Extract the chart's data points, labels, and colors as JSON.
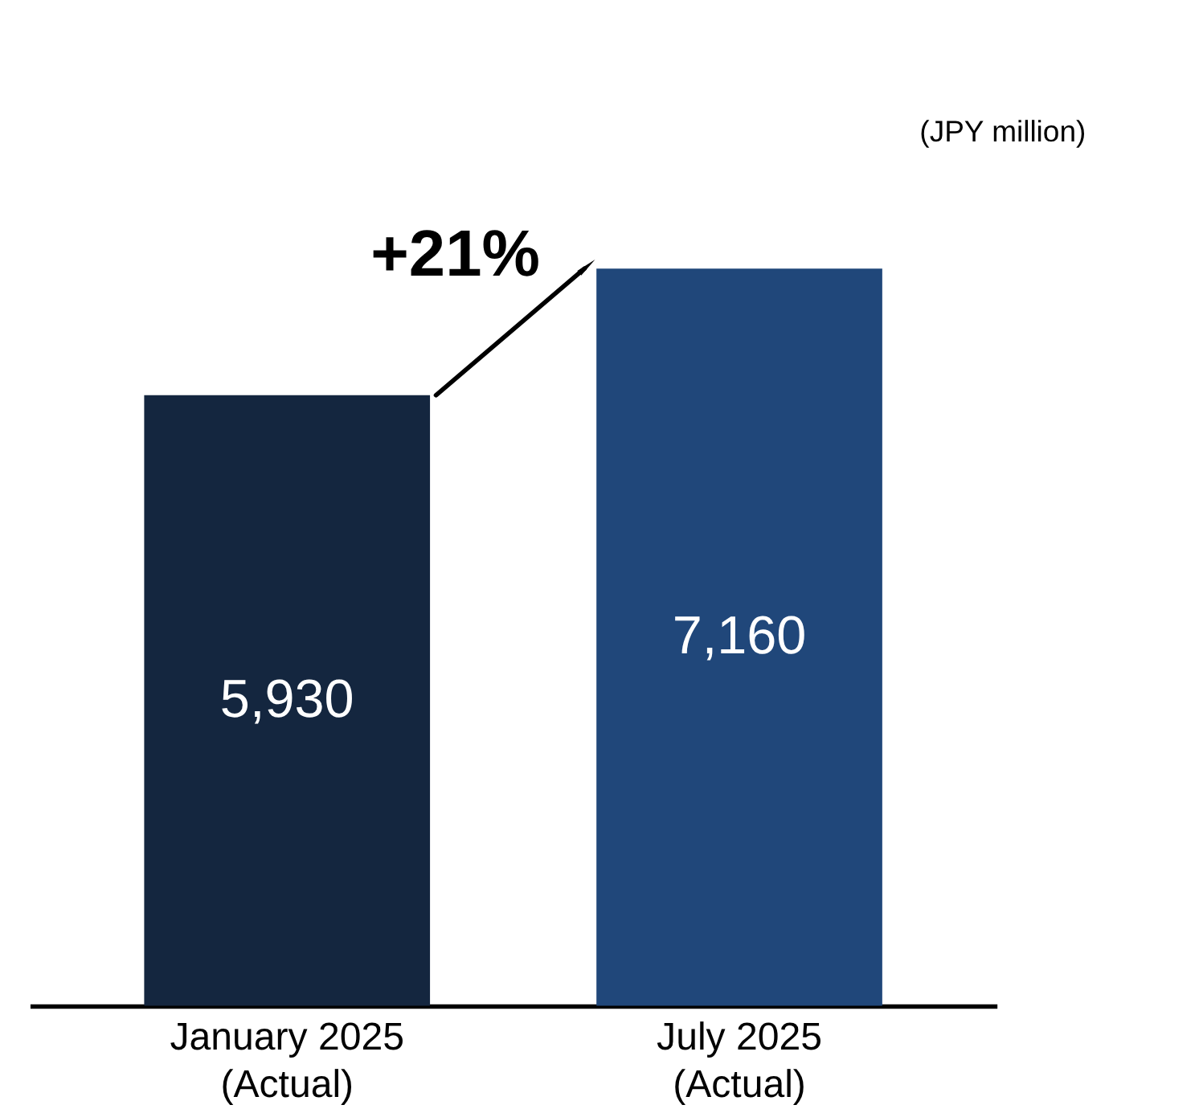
{
  "chart_data": {
    "type": "bar",
    "ylabel": "(JPY million)",
    "categories": [
      "January 2025\n(Actual)",
      "July 2025\n(Actual)"
    ],
    "values": [
      5930,
      7160
    ],
    "value_labels": [
      "5,930",
      "7,160"
    ],
    "colors": [
      "#14263f",
      "#20477a"
    ],
    "annotations": [
      "+21%"
    ]
  }
}
